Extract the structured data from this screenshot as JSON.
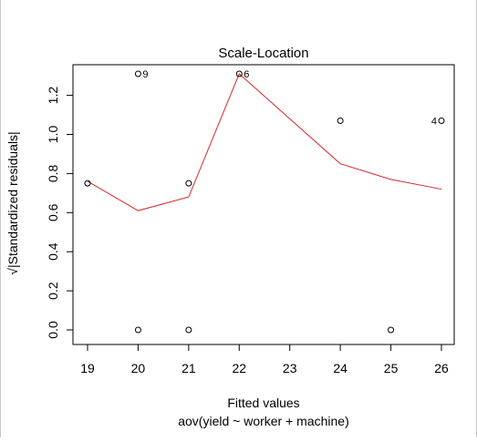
{
  "chart_data": {
    "type": "scatter",
    "title": "Scale-Location",
    "xlabel": "Fitted values",
    "subtitle": "aov(yield ~ worker + machine)",
    "ylabel": "√|Standardized residuals|",
    "xlim": [
      19,
      26
    ],
    "ylim": [
      0,
      1.32
    ],
    "x_ticks": [
      19,
      20,
      21,
      22,
      23,
      24,
      25,
      26
    ],
    "y_ticks": [
      0.0,
      0.2,
      0.4,
      0.6,
      0.8,
      1.0,
      1.2
    ],
    "y_tick_labels": [
      "0.0",
      "0.2",
      "0.4",
      "0.6",
      "0.8",
      "1.0",
      "1.2"
    ],
    "grid": false,
    "series": [
      {
        "points": [
          {
            "x": 19,
            "y": 0.75
          },
          {
            "x": 20,
            "y": 1.31
          },
          {
            "x": 20,
            "y": 0.0
          },
          {
            "x": 21,
            "y": 0.75
          },
          {
            "x": 21,
            "y": 0.0
          },
          {
            "x": 22,
            "y": 1.31
          },
          {
            "x": 24,
            "y": 1.07
          },
          {
            "x": 25,
            "y": 0.0
          },
          {
            "x": 26,
            "y": 1.07
          }
        ]
      }
    ],
    "smooth_line": {
      "color": "#d62728",
      "points": [
        {
          "x": 19,
          "y": 0.76
        },
        {
          "x": 20,
          "y": 0.61
        },
        {
          "x": 21,
          "y": 0.68
        },
        {
          "x": 22,
          "y": 1.31
        },
        {
          "x": 24,
          "y": 0.85
        },
        {
          "x": 25,
          "y": 0.77
        },
        {
          "x": 26,
          "y": 0.72
        }
      ]
    },
    "annotations": [
      {
        "text": "9",
        "x": 20,
        "y": 1.31,
        "side": "right"
      },
      {
        "text": "6",
        "x": 22,
        "y": 1.31,
        "side": "right"
      },
      {
        "text": "4",
        "x": 26,
        "y": 1.07,
        "side": "left"
      }
    ]
  }
}
